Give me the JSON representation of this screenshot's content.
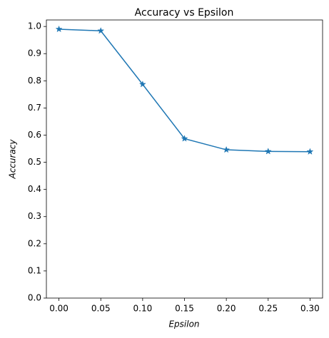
{
  "chart_data": {
    "type": "line",
    "title": "Accuracy vs Epsilon",
    "x_label": "Epsilon",
    "y_label": "Accuracy",
    "x": [
      0.0,
      0.05,
      0.1,
      0.15,
      0.2,
      0.25,
      0.3
    ],
    "series": [
      {
        "color": "#1f77b4",
        "marker": "star",
        "values": [
          0.99,
          0.984,
          0.787,
          0.587,
          0.546,
          0.54,
          0.539
        ]
      }
    ],
    "xlim": [
      -0.015,
      0.315
    ],
    "xticks": [
      {
        "value": 0,
        "label": "0.00"
      },
      {
        "value": 0.05,
        "label": "0.05"
      },
      {
        "value": 0.1,
        "label": "0.10"
      },
      {
        "value": 0.15,
        "label": "0.15"
      },
      {
        "value": 0.2,
        "label": "0.20"
      },
      {
        "value": 0.25,
        "label": "0.25"
      },
      {
        "value": 0.3,
        "label": "0.30"
      }
    ],
    "ylim": [
      0,
      1.024
    ],
    "yticks": [
      {
        "value": 0,
        "label": "0.0"
      },
      {
        "value": 0.1,
        "label": "0.1"
      },
      {
        "value": 0.2,
        "label": "0.2"
      },
      {
        "value": 0.3,
        "label": "0.3"
      },
      {
        "value": 0.4,
        "label": "0.4"
      },
      {
        "value": 0.5,
        "label": "0.5"
      },
      {
        "value": 0.6,
        "label": "0.6"
      },
      {
        "value": 0.7,
        "label": "0.7"
      },
      {
        "value": 0.8,
        "label": "0.8"
      },
      {
        "value": 0.9,
        "label": "0.9"
      },
      {
        "value": 1.0,
        "label": "1.0"
      }
    ],
    "grid": false
  }
}
